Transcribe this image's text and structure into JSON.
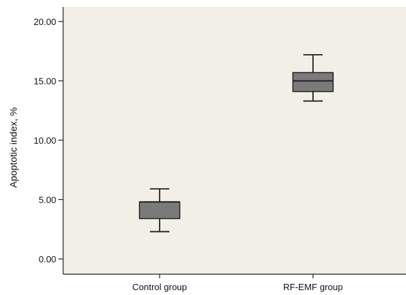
{
  "chart_data": {
    "type": "box",
    "ylabel": "Apoptotic index, %",
    "ylim": [
      0,
      20
    ],
    "yticks": [
      "0.00",
      "5.00",
      "10.00",
      "15.00",
      "20.00"
    ],
    "categories": [
      "Control group",
      "RF-EMF group"
    ],
    "boxes": [
      {
        "category": "Control group",
        "min": 2.3,
        "q1": 3.4,
        "median": 4.8,
        "q3": 4.8,
        "max": 5.9
      },
      {
        "category": "RF-EMF group",
        "min": 13.3,
        "q1": 14.1,
        "median": 15.0,
        "q3": 15.7,
        "max": 17.2
      }
    ],
    "grid": false,
    "colors": {
      "plot_background": "#f1efe6",
      "box_fill": "#7a7a7a",
      "line": "#222222"
    }
  }
}
